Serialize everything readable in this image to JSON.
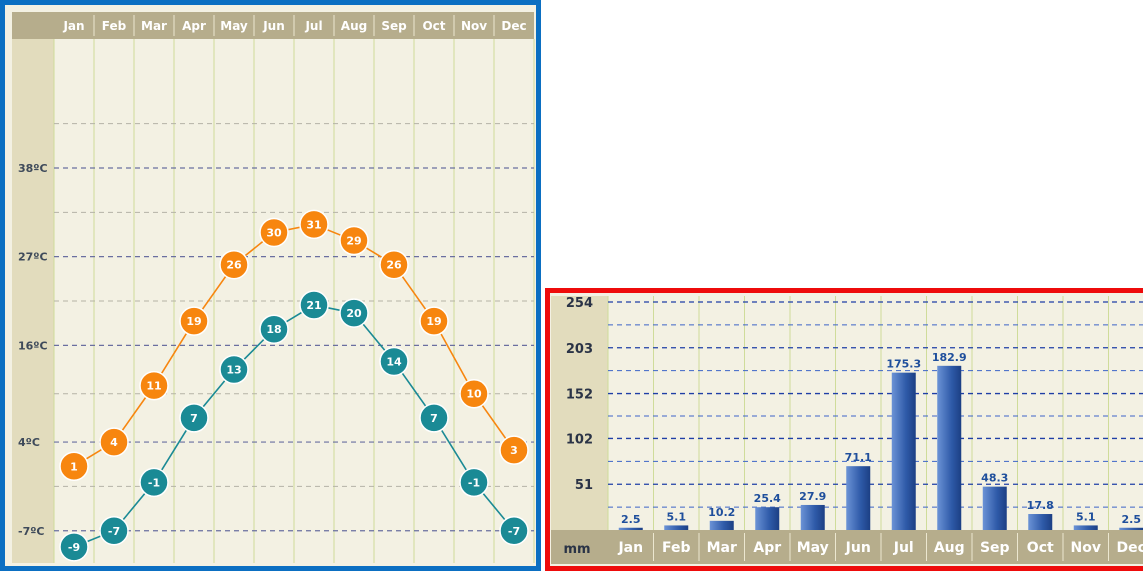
{
  "chart_data": [
    {
      "type": "line",
      "categories": [
        "Jan",
        "Feb",
        "Mar",
        "Apr",
        "May",
        "Jun",
        "Jul",
        "Aug",
        "Sep",
        "Oct",
        "Nov",
        "Dec"
      ],
      "series": [
        {
          "values": [
            1,
            4,
            11,
            19,
            26,
            30,
            31,
            29,
            26,
            19,
            10,
            3
          ],
          "color": "#f7860f"
        },
        {
          "values": [
            -9,
            -7,
            -1,
            7,
            13,
            18,
            21,
            20,
            14,
            7,
            -1,
            -7
          ],
          "color": "#1a8a95"
        }
      ],
      "y_ticks": [
        {
          "value": 38,
          "label": "38ºC"
        },
        {
          "value": 27,
          "label": "27ºC"
        },
        {
          "value": 16,
          "label": "16ºC"
        },
        {
          "value": 4,
          "label": "4ºC"
        },
        {
          "value": -7,
          "label": "-7ºC"
        }
      ],
      "ylim": [
        -11,
        54
      ],
      "grid": true,
      "colors": {
        "frame": "#0b6fc2",
        "header": "#b6ad8c",
        "plot_bg": "#f3f1e3",
        "axis_bg": "#e2dcbd"
      }
    },
    {
      "type": "bar",
      "categories": [
        "Jan",
        "Feb",
        "Mar",
        "Apr",
        "May",
        "Jun",
        "Jul",
        "Aug",
        "Sep",
        "Oct",
        "Nov",
        "Dec"
      ],
      "values": [
        2.5,
        5.1,
        10.2,
        25.4,
        27.9,
        71.1,
        175.3,
        182.9,
        48.3,
        17.8,
        5.1,
        2.5
      ],
      "y_ticks": [
        254,
        203,
        152,
        102,
        51
      ],
      "ylim": [
        0,
        254
      ],
      "unit_label": "mm",
      "grid": true,
      "colors": {
        "frame": "#ee0b0b",
        "bar": "#2e5aa8",
        "label": "#1f4f9c",
        "header": "#b6ad8c",
        "plot_bg": "#f3f1e3",
        "axis_bg": "#e2dcbd"
      }
    }
  ]
}
